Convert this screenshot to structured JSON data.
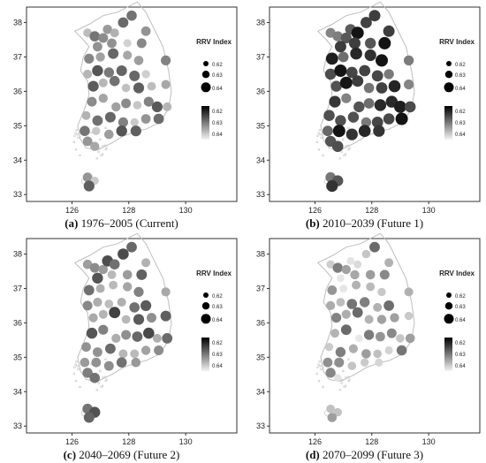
{
  "figure": {
    "legend_size_title": "RRV Index",
    "legend_size_labels": [
      "0.62",
      "0.63",
      "0.64"
    ],
    "legend_color_labels": [
      "0.62",
      "0.63",
      "0.64"
    ],
    "x_ticks": [
      "126",
      "128",
      "130"
    ],
    "y_ticks": [
      "38",
      "37",
      "36",
      "35",
      "34",
      "33"
    ]
  },
  "panels": [
    {
      "letter": "(a)",
      "caption": " 1976–2005 (Current)",
      "darkness": 0.45
    },
    {
      "letter": "(b)",
      "caption": " 2010–2039 (Future 1)",
      "darkness": 0.85
    },
    {
      "letter": "(c)",
      "caption": " 2040–2069 (Future 2)",
      "darkness": 0.55
    },
    {
      "letter": "(d)",
      "caption": " 2070–2099 (Future 3)",
      "darkness": 0.35
    }
  ]
}
